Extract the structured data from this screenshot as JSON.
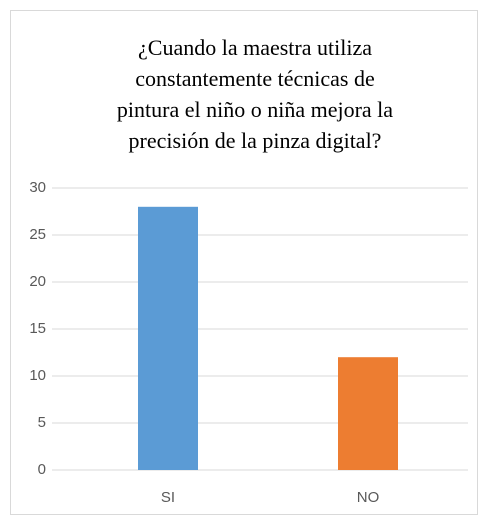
{
  "chart_data": {
    "type": "bar",
    "title": [
      "¿Cuando la maestra utiliza",
      "constantemente técnicas de",
      "pintura el niño o niña mejora la",
      "precisión de la pinza digital?"
    ],
    "categories": [
      "SI",
      "NO"
    ],
    "values": [
      28,
      12
    ],
    "colors": [
      "#5b9bd5",
      "#ed7d31"
    ],
    "ylim": [
      0,
      30
    ],
    "yticks": [
      0,
      5,
      10,
      15,
      20,
      25,
      30
    ],
    "grid": true
  }
}
